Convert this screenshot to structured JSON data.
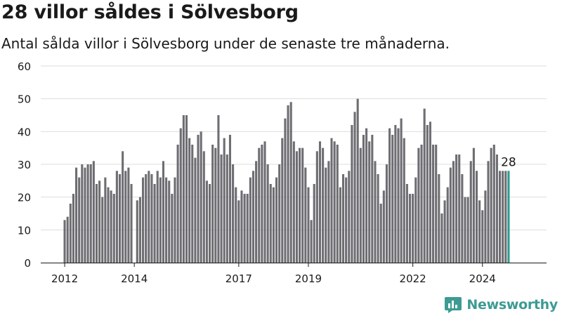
{
  "header": {
    "title": "28 villor såldes i Sölvesborg",
    "subtitle": "Antal sålda villor i Sölvesborg under de senaste tre månaderna."
  },
  "brand": {
    "name": "Newsworthy"
  },
  "colors": {
    "bar": "#6e6d72",
    "highlight": "#2a9d8f",
    "grid": "#dddddd",
    "brand": "#3d9b93"
  },
  "chart_data": {
    "type": "bar",
    "title": "28 villor såldes i Sölvesborg",
    "subtitle": "Antal sålda villor i Sölvesborg under de senaste tre månaderna.",
    "xlabel": "",
    "ylabel": "",
    "ylim": [
      0,
      60
    ],
    "yticks": [
      0,
      10,
      20,
      30,
      40,
      50,
      60
    ],
    "xticks": [
      {
        "label": "2012",
        "index": 0
      },
      {
        "label": "2014",
        "index": 24
      },
      {
        "label": "2017",
        "index": 60
      },
      {
        "label": "2019",
        "index": 84
      },
      {
        "label": "2022",
        "index": 120
      },
      {
        "label": "2024",
        "index": 144
      }
    ],
    "grid": true,
    "last_value_label": "28",
    "values": [
      13,
      14,
      18,
      21,
      29,
      26,
      30,
      29,
      30,
      30,
      31,
      24,
      25,
      20,
      26,
      23,
      22,
      21,
      28,
      27,
      34,
      28,
      29,
      24,
      0,
      19,
      20,
      26,
      27,
      28,
      27,
      24,
      28,
      26,
      31,
      26,
      25,
      21,
      26,
      36,
      41,
      45,
      45,
      38,
      36,
      32,
      39,
      40,
      34,
      25,
      24,
      36,
      35,
      45,
      33,
      38,
      33,
      39,
      30,
      23,
      19,
      22,
      21,
      21,
      26,
      28,
      31,
      35,
      36,
      37,
      30,
      24,
      23,
      26,
      30,
      38,
      44,
      48,
      49,
      37,
      34,
      35,
      35,
      29,
      23,
      13,
      24,
      34,
      37,
      35,
      29,
      31,
      38,
      37,
      36,
      23,
      27,
      26,
      28,
      42,
      46,
      50,
      35,
      39,
      41,
      37,
      39,
      31,
      27,
      18,
      22,
      30,
      41,
      39,
      42,
      41,
      44,
      38,
      24,
      21,
      21,
      26,
      35,
      36,
      47,
      42,
      43,
      36,
      36,
      27,
      15,
      19,
      23,
      29,
      31,
      33,
      33,
      27,
      20,
      20,
      31,
      35,
      28,
      19,
      16,
      22,
      31,
      35,
      36,
      33,
      28,
      28,
      28,
      28
    ]
  }
}
